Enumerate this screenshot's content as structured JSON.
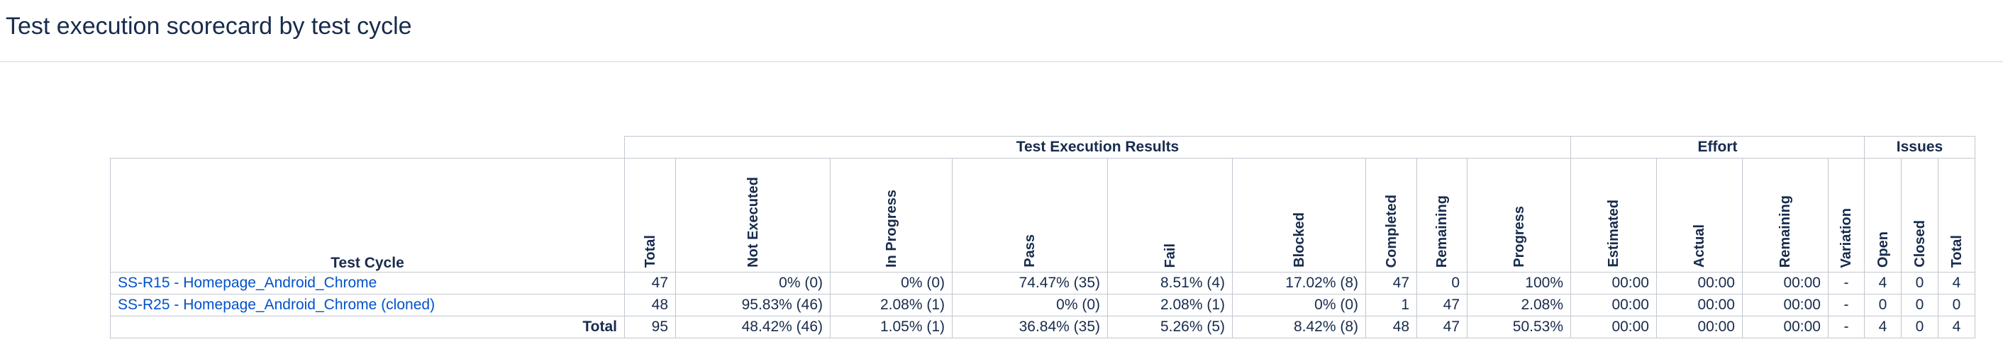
{
  "page": {
    "title": "Test execution scorecard by test cycle"
  },
  "groups": {
    "results": "Test Execution Results",
    "effort": "Effort",
    "issues": "Issues"
  },
  "columns": {
    "cycle": "Test Cycle",
    "total": "Total",
    "not_executed": "Not Executed",
    "in_progress": "In Progress",
    "pass": "Pass",
    "fail": "Fail",
    "blocked": "Blocked",
    "completed": "Completed",
    "remaining": "Remaining",
    "progress": "Progress",
    "estimated": "Estimated",
    "actual": "Actual",
    "effort_remaining": "Remaining",
    "variation": "Variation",
    "open": "Open",
    "closed": "Closed",
    "issues_total": "Total"
  },
  "rows": [
    {
      "cycle": "SS-R15 - Homepage_Android_Chrome",
      "total": "47",
      "not_executed": "0% (0)",
      "in_progress": "0% (0)",
      "pass": "74.47% (35)",
      "fail": "8.51% (4)",
      "blocked": "17.02% (8)",
      "completed": "47",
      "remaining": "0",
      "progress": "100%",
      "estimated": "00:00",
      "actual": "00:00",
      "effort_remaining": "00:00",
      "variation": "-",
      "open": "4",
      "closed": "0",
      "issues_total": "4"
    },
    {
      "cycle": "SS-R25 - Homepage_Android_Chrome (cloned)",
      "total": "48",
      "not_executed": "95.83% (46)",
      "in_progress": "2.08% (1)",
      "pass": "0% (0)",
      "fail": "2.08% (1)",
      "blocked": "0% (0)",
      "completed": "1",
      "remaining": "47",
      "progress": "2.08%",
      "estimated": "00:00",
      "actual": "00:00",
      "effort_remaining": "00:00",
      "variation": "-",
      "open": "0",
      "closed": "0",
      "issues_total": "0"
    }
  ],
  "totals": {
    "label": "Total",
    "total": "95",
    "not_executed": "48.42% (46)",
    "in_progress": "1.05% (1)",
    "pass": "36.84% (35)",
    "fail": "5.26% (5)",
    "blocked": "8.42% (8)",
    "completed": "48",
    "remaining": "47",
    "progress": "50.53%",
    "estimated": "00:00",
    "actual": "00:00",
    "effort_remaining": "00:00",
    "variation": "-",
    "open": "4",
    "closed": "0",
    "issues_total": "4"
  }
}
